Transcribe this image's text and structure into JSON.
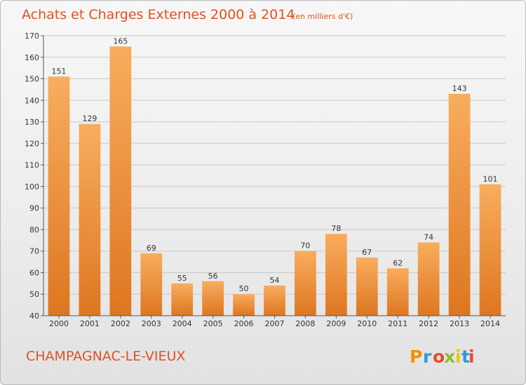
{
  "chart_data": {
    "type": "bar",
    "title": "Achats et Charges Externes 2000 à 2014",
    "subtitle": "(en milliers d'€)",
    "categories": [
      "2000",
      "2001",
      "2002",
      "2003",
      "2004",
      "2005",
      "2006",
      "2007",
      "2008",
      "2009",
      "2010",
      "2011",
      "2012",
      "2013",
      "2014"
    ],
    "values": [
      151,
      129,
      165,
      69,
      55,
      56,
      50,
      54,
      70,
      78,
      67,
      62,
      74,
      143,
      101
    ],
    "ylim": [
      40,
      170
    ],
    "yticks": [
      40,
      50,
      60,
      70,
      80,
      90,
      100,
      110,
      120,
      130,
      140,
      150,
      160,
      170
    ],
    "xlabel": "",
    "ylabel": "",
    "grid": true,
    "legend": "none",
    "colors": {
      "bar_light": "#f7a95a",
      "bar_dark": "#e27a22",
      "title": "#e05020"
    }
  },
  "footer": {
    "commune": "CHAMPAGNAC-LE-VIEUX",
    "logo_text": "Proxiti"
  }
}
